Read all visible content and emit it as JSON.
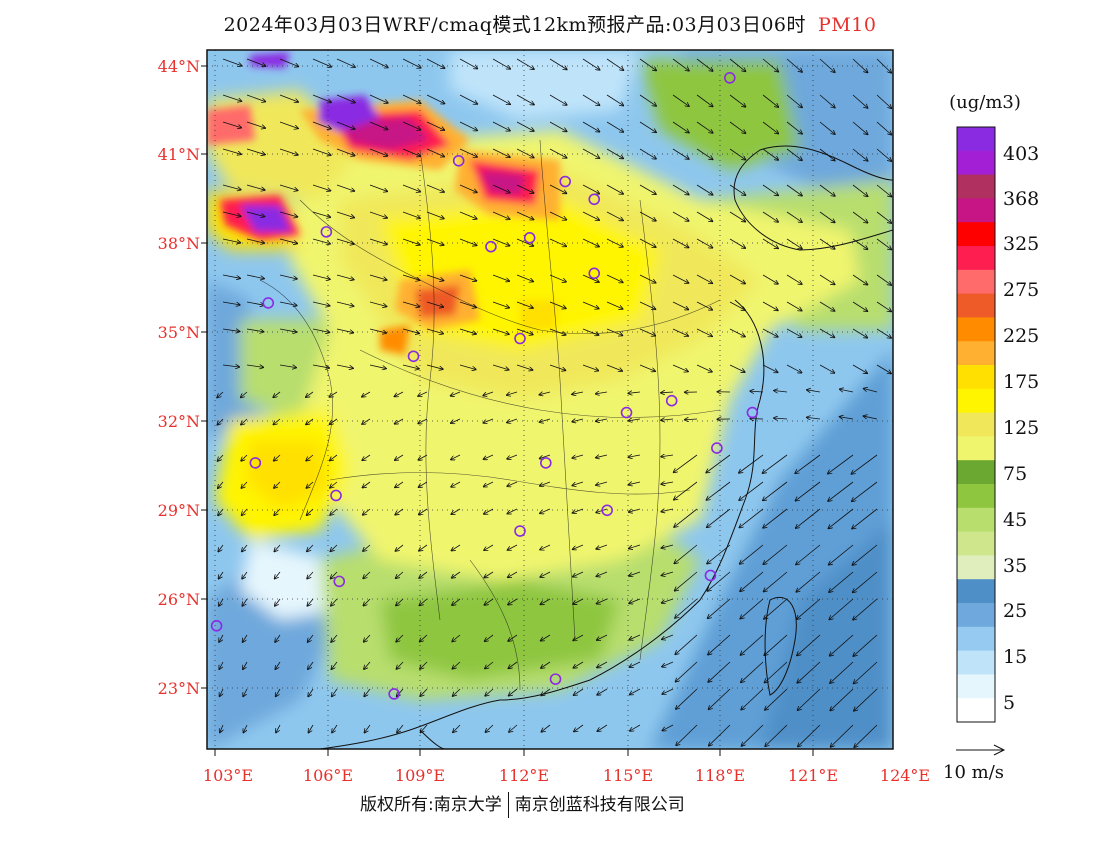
{
  "title": {
    "main": "2024年03月03日WRF/cmaq模式12km预报产品:03月03日06时",
    "variable": "PM10"
  },
  "axes": {
    "lat_labels": [
      "44°N",
      "41°N",
      "38°N",
      "35°N",
      "32°N",
      "29°N",
      "26°N",
      "23°N"
    ],
    "lon_labels": [
      "103°E",
      "106°E",
      "109°E",
      "112°E",
      "115°E",
      "118°E",
      "121°E",
      "124°E"
    ]
  },
  "colorbar": {
    "unit": "(ug/m3)",
    "labels": [
      "403",
      "368",
      "325",
      "275",
      "225",
      "175",
      "125",
      "75",
      "45",
      "35",
      "25",
      "15",
      "5"
    ],
    "colors": [
      "#8a2be2",
      "#a31fd6",
      "#b03060",
      "#c71585",
      "#ff0000",
      "#ff1e50",
      "#ff6a6a",
      "#ee5a28",
      "#ff8c00",
      "#ffb030",
      "#ffe000",
      "#fff500",
      "#f0e85a",
      "#f0f56e",
      "#6aa832",
      "#8ec63f",
      "#b8de6e",
      "#cfe68c",
      "#e0eebe",
      "#4f8fc8",
      "#6ea8dc",
      "#96caf0",
      "#bfe4fa",
      "#e6f6fd",
      "#ffffff"
    ]
  },
  "wind_scale": {
    "label": "10 m/s"
  },
  "footer": {
    "left": "版权所有:南京大学",
    "right": "南京创蓝科技有限公司"
  },
  "stations": [
    {
      "name": "s1",
      "lon": 118.7,
      "lat": 43.6
    },
    {
      "name": "s2",
      "lon": 110.3,
      "lat": 40.8
    },
    {
      "name": "s3",
      "lon": 113.6,
      "lat": 40.1
    },
    {
      "name": "s4",
      "lon": 114.5,
      "lat": 39.5
    },
    {
      "name": "s5",
      "lon": 106.2,
      "lat": 38.4
    },
    {
      "name": "s6",
      "lon": 111.3,
      "lat": 37.9
    },
    {
      "name": "s7",
      "lon": 112.5,
      "lat": 38.2
    },
    {
      "name": "s8",
      "lon": 114.5,
      "lat": 37.0
    },
    {
      "name": "s9",
      "lon": 104.4,
      "lat": 36.0
    },
    {
      "name": "s10",
      "lon": 112.2,
      "lat": 34.8
    },
    {
      "name": "s11",
      "lon": 108.9,
      "lat": 34.2
    },
    {
      "name": "s12",
      "lon": 116.9,
      "lat": 32.7
    },
    {
      "name": "s13",
      "lon": 115.5,
      "lat": 32.3
    },
    {
      "name": "s14",
      "lon": 119.4,
      "lat": 32.3
    },
    {
      "name": "s15",
      "lon": 118.3,
      "lat": 31.1
    },
    {
      "name": "s16",
      "lon": 104.0,
      "lat": 30.6
    },
    {
      "name": "s17",
      "lon": 113.0,
      "lat": 30.6
    },
    {
      "name": "s18",
      "lon": 106.5,
      "lat": 29.5
    },
    {
      "name": "s19",
      "lon": 114.9,
      "lat": 29.0
    },
    {
      "name": "s20",
      "lon": 112.2,
      "lat": 28.3
    },
    {
      "name": "s21",
      "lon": 106.6,
      "lat": 26.6
    },
    {
      "name": "s22",
      "lon": 118.1,
      "lat": 26.8
    },
    {
      "name": "s23",
      "lon": 102.8,
      "lat": 25.1
    },
    {
      "name": "s24",
      "lon": 113.3,
      "lat": 23.3
    },
    {
      "name": "s25",
      "lon": 108.3,
      "lat": 22.8
    }
  ]
}
